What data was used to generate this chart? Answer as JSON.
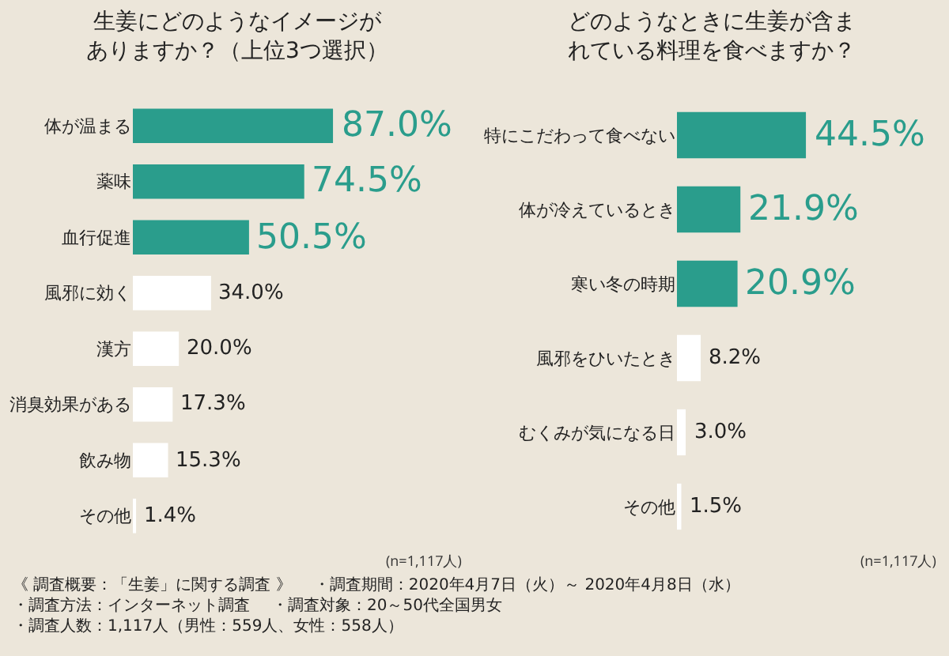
{
  "chart_data": [
    {
      "type": "bar",
      "orientation": "horizontal",
      "title": "生姜にどのようなイメージがありますか？（上位3つ選択）",
      "categories": [
        "体が温まる",
        "薬味",
        "血行促進",
        "風邪に効く",
        "漢方",
        "消臭効果がある",
        "飲み物",
        "その他"
      ],
      "values": [
        87.0,
        74.5,
        50.5,
        34.0,
        20.0,
        17.3,
        15.3,
        1.4
      ],
      "colors": [
        "#2a9d8c",
        "#2a9d8c",
        "#2a9d8c",
        "#ffffff",
        "#ffffff",
        "#ffffff",
        "#ffffff",
        "#ffffff"
      ],
      "value_labels": [
        "87.0%",
        "74.5%",
        "50.5%",
        "34.0%",
        "20.0%",
        "17.3%",
        "15.3%",
        "1.4%"
      ],
      "annotations": [
        "(n=1,117人)",
        "《 調査概要：「生姜」に関する調査 》",
        "・調査期間：2020年4月7日（火）～ 2020年4月8日（水）",
        "・調査方法：インターネット調査",
        "・調査対象：20～50代全国男女",
        "・調査人数：1,117人（男性：559人、女性：558人）"
      ]
    },
    {
      "type": "bar",
      "orientation": "horizontal",
      "title": "どのようなときに生姜が含まれている料理を食べますか？",
      "categories": [
        "特にこだわって食べない",
        "体が冷えているとき",
        "寒い冬の時期",
        "風邪をひいたとき",
        "むくみが気になる日",
        "その他"
      ],
      "values": [
        44.5,
        21.9,
        20.9,
        8.2,
        3.0,
        1.5
      ],
      "colors": [
        "#2a9d8c",
        "#2a9d8c",
        "#2a9d8c",
        "#ffffff",
        "#ffffff",
        "#ffffff"
      ],
      "value_labels": [
        "44.5%",
        "21.9%",
        "20.9%",
        "8.2%",
        "3.0%",
        "1.5%"
      ],
      "annotations": [
        "(n=1,117人)"
      ]
    }
  ]
}
